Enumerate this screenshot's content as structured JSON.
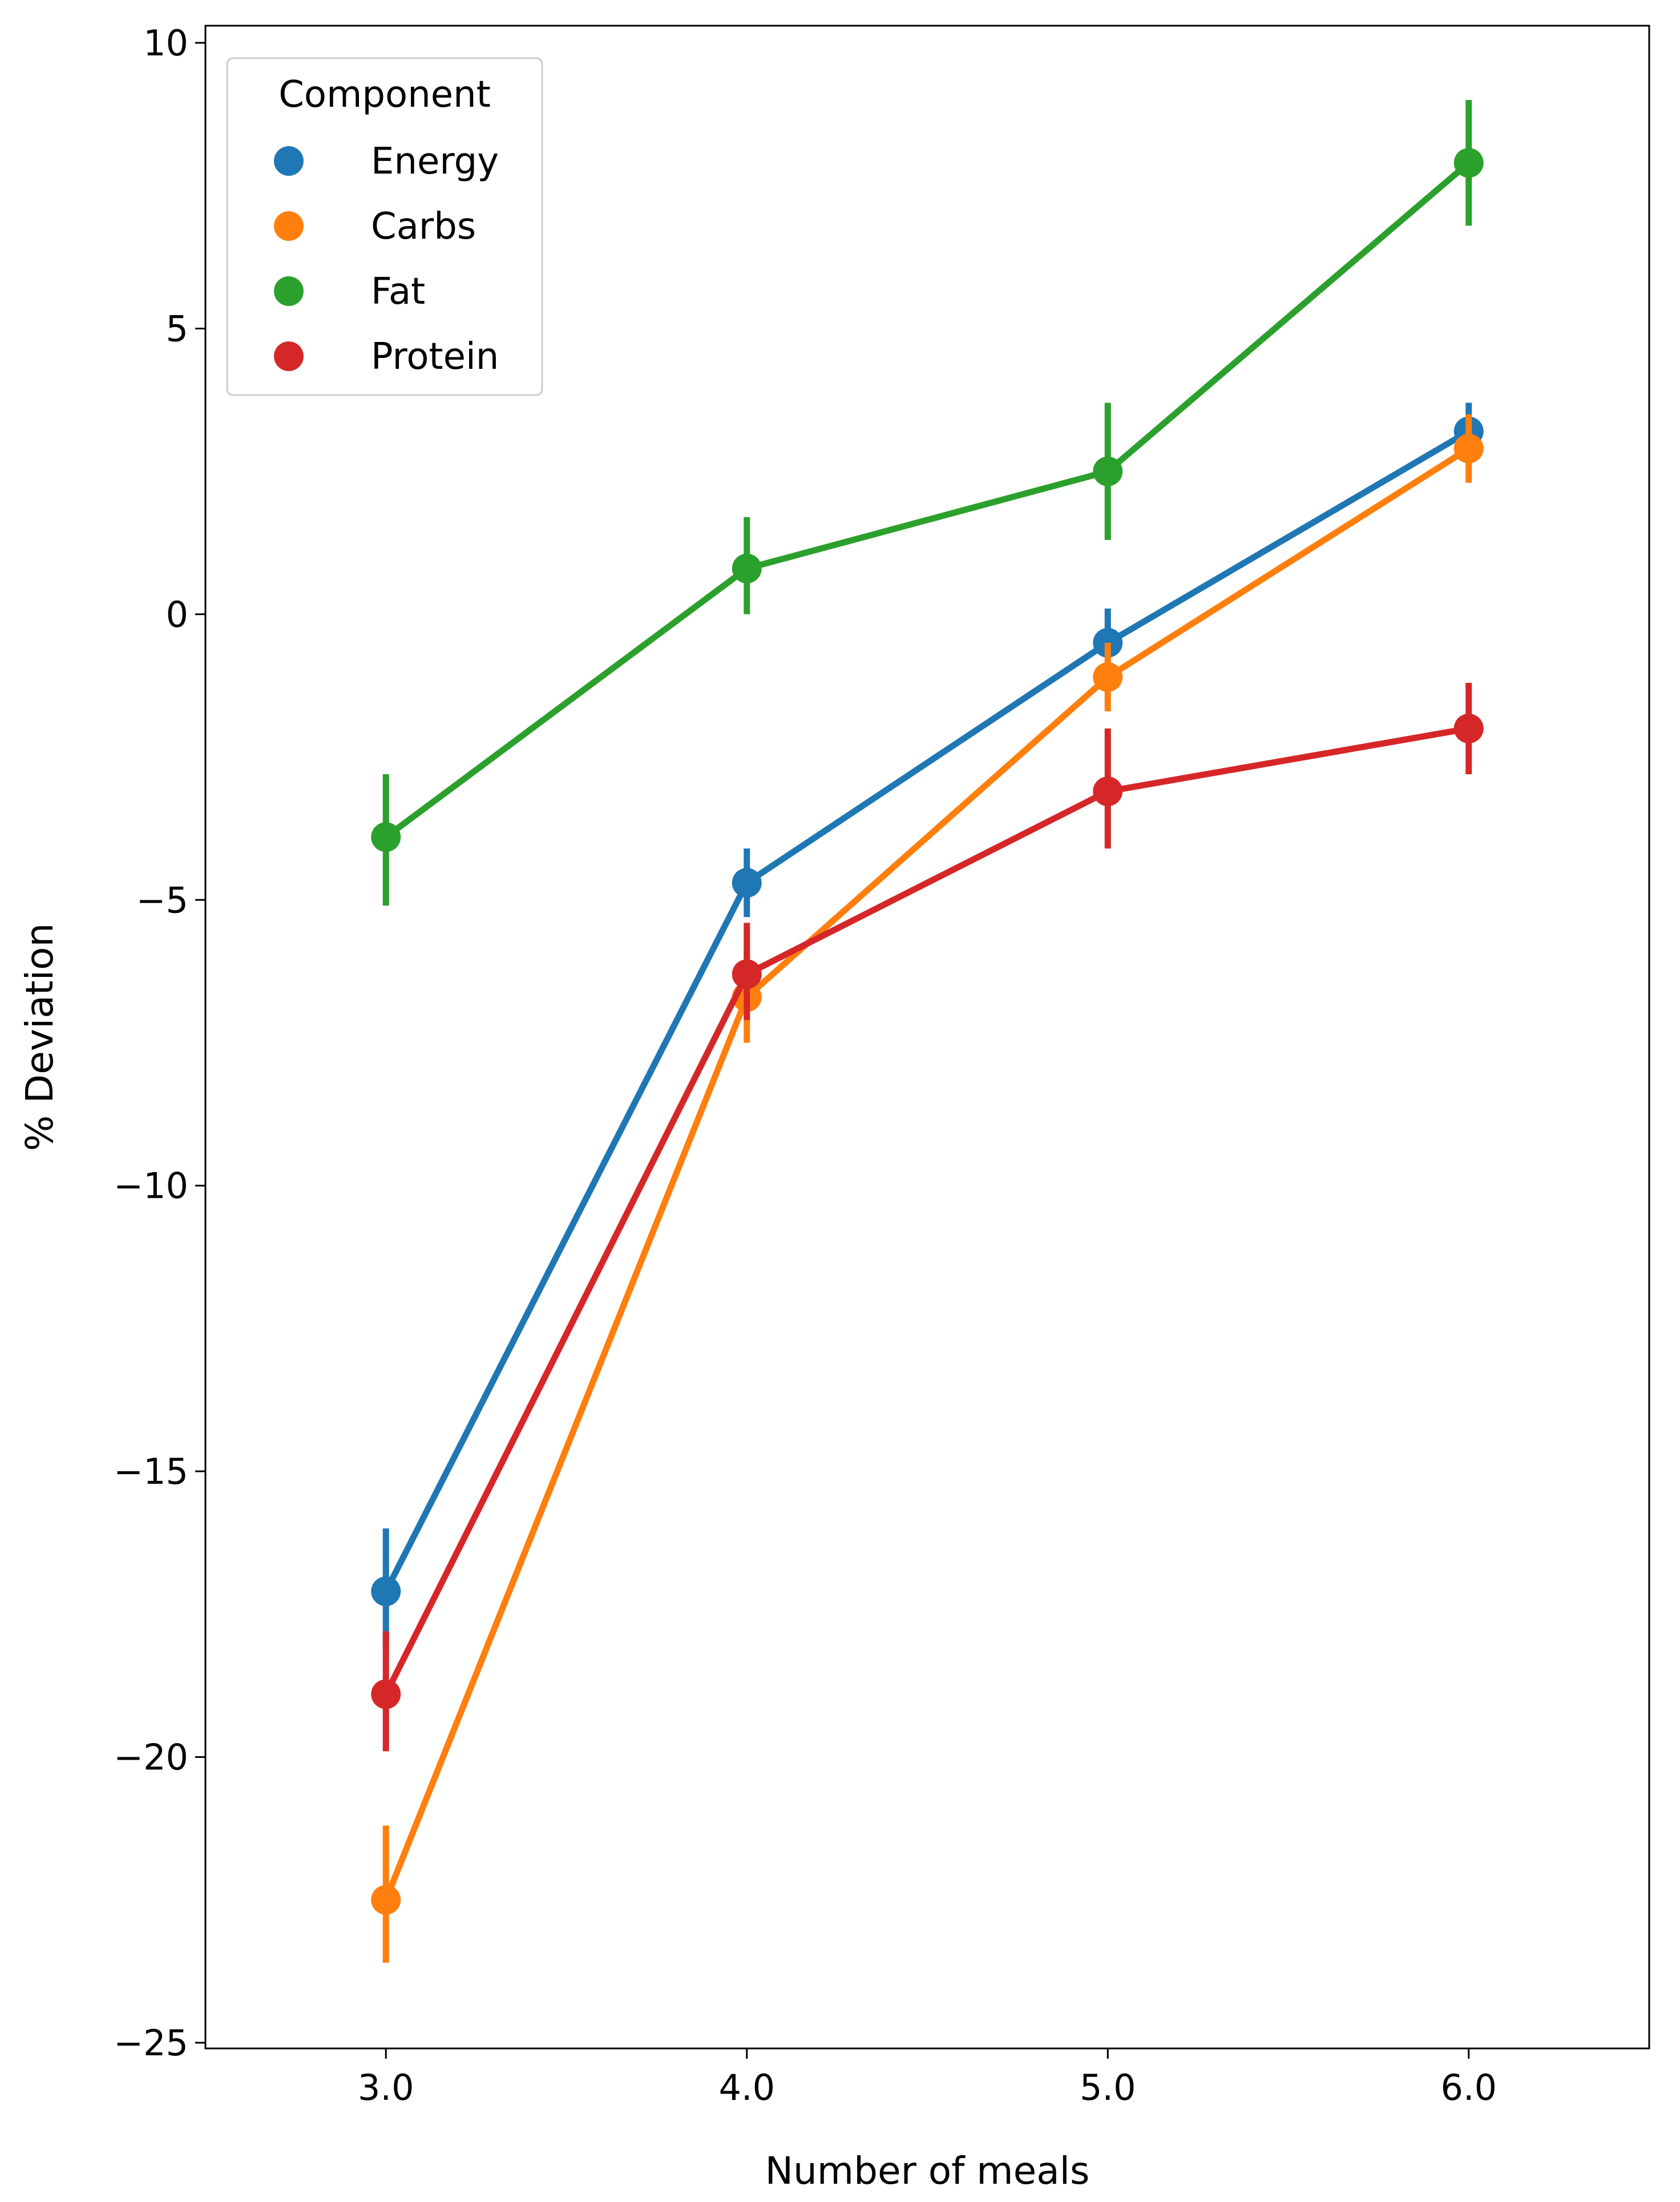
{
  "chart_data": {
    "type": "line",
    "title": "",
    "xlabel": "Number of meals",
    "ylabel": "% Deviation",
    "categories": [
      "3.0",
      "4.0",
      "5.0",
      "6.0"
    ],
    "xlim": [
      2.5,
      6.5
    ],
    "ylim": [
      -25.1,
      10.3
    ],
    "yticks": [
      -25,
      -20,
      -15,
      -10,
      -5,
      0,
      5,
      10
    ],
    "ytick_labels": [
      "−25",
      "−20",
      "−15",
      "−10",
      "−5",
      "0",
      "5",
      "10"
    ],
    "grid": false,
    "legend": {
      "title": "Component",
      "position": "top-left"
    },
    "series": [
      {
        "name": "Energy",
        "color": "#1f77b4",
        "values": [
          -17.1,
          -4.7,
          -0.5,
          3.2
        ],
        "err_low": [
          -18.0,
          -5.3,
          -1.1,
          2.8
        ],
        "err_high": [
          -16.0,
          -4.1,
          0.1,
          3.7
        ]
      },
      {
        "name": "Carbs",
        "color": "#ff7f0e",
        "values": [
          -22.5,
          -6.7,
          -1.1,
          2.9
        ],
        "err_low": [
          -23.6,
          -7.5,
          -1.7,
          2.3
        ],
        "err_high": [
          -21.2,
          -5.9,
          -0.5,
          3.5
        ]
      },
      {
        "name": "Fat",
        "color": "#2ca02c",
        "values": [
          -3.9,
          0.8,
          2.5,
          7.9
        ],
        "err_low": [
          -5.1,
          0.0,
          1.3,
          6.8
        ],
        "err_high": [
          -2.8,
          1.7,
          3.7,
          9.0
        ]
      },
      {
        "name": "Protein",
        "color": "#d62728",
        "values": [
          -18.9,
          -6.3,
          -3.1,
          -2.0
        ],
        "err_low": [
          -19.9,
          -7.1,
          -4.1,
          -2.8
        ],
        "err_high": [
          -17.8,
          -5.4,
          -2.0,
          -1.2
        ]
      }
    ]
  }
}
